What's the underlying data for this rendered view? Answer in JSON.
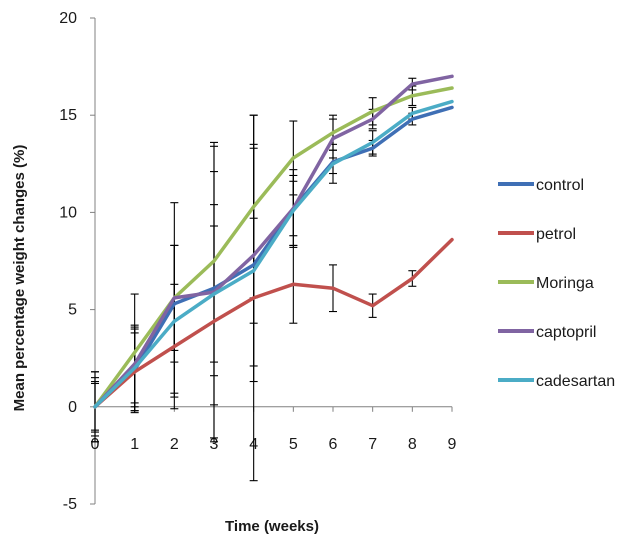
{
  "chart_data": {
    "type": "line",
    "title": "",
    "xlabel": "Time (weeks)",
    "ylabel": "Mean percentage weight changes (%)",
    "x": [
      0,
      1,
      2,
      3,
      4,
      5,
      6,
      7,
      8,
      9
    ],
    "xlim": [
      0,
      9
    ],
    "ylim": [
      -5,
      20
    ],
    "yticks": [
      -5,
      0,
      5,
      10,
      15,
      20
    ],
    "xticks": [
      0,
      1,
      2,
      3,
      4,
      5,
      6,
      7,
      8,
      9
    ],
    "grid": false,
    "legend_position": "right",
    "series": [
      {
        "name": "control",
        "color": "#3f6fb5",
        "values": [
          0,
          1.9,
          5.3,
          6.1,
          7.3,
          10.2,
          12.6,
          13.3,
          14.8,
          15.4
        ],
        "errors": [
          1.8,
          2.2,
          3.0,
          6.0,
          6.0,
          2.0,
          0.6,
          0.4,
          0.3,
          0.0
        ]
      },
      {
        "name": "petrol",
        "color": "#c0504d",
        "values": [
          0,
          1.8,
          3.1,
          4.4,
          5.6,
          6.3,
          6.1,
          5.2,
          6.6,
          8.6
        ],
        "errors": [
          1.5,
          2.0,
          3.2,
          6.0,
          9.4,
          2.0,
          1.2,
          0.6,
          0.4,
          0.0
        ]
      },
      {
        "name": "Moringa",
        "color": "#9bbb59",
        "values": [
          0,
          2.8,
          5.6,
          7.5,
          10.3,
          12.8,
          14.1,
          15.2,
          16.0,
          16.4
        ],
        "errors": [
          1.2,
          3.0,
          4.9,
          5.9,
          4.7,
          1.9,
          0.9,
          0.7,
          0.5,
          0.0
        ]
      },
      {
        "name": "captopril",
        "color": "#8064a2",
        "values": [
          0,
          2.2,
          5.6,
          5.9,
          7.8,
          10.2,
          13.8,
          14.8,
          16.6,
          17.0
        ],
        "errors": [
          1.3,
          2.0,
          2.7,
          7.7,
          5.7,
          1.4,
          1.0,
          0.5,
          0.3,
          0.0
        ]
      },
      {
        "name": "cadesartan",
        "color": "#4bacc6",
        "values": [
          0,
          2.0,
          4.4,
          5.8,
          7.0,
          10.1,
          12.5,
          13.6,
          15.1,
          15.7
        ],
        "errors": [
          1.8,
          2.0,
          3.9,
          3.5,
          2.7,
          1.8,
          1.0,
          0.6,
          0.3,
          0.0
        ]
      }
    ]
  }
}
